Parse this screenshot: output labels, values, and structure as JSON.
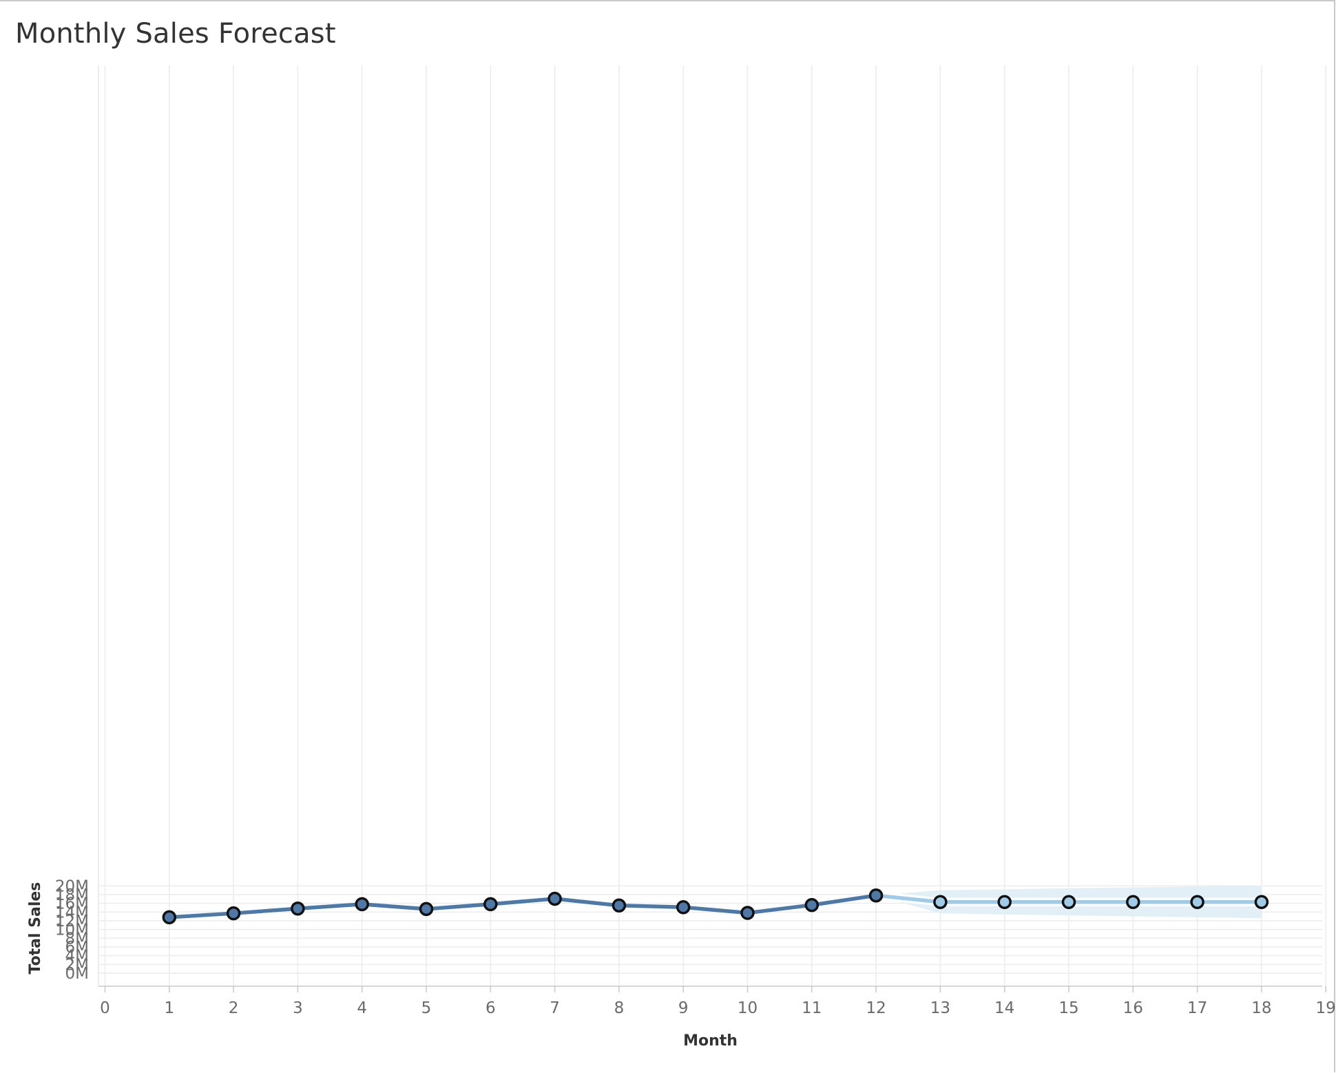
{
  "chart_data": {
    "type": "line",
    "title": "Monthly Sales Forecast",
    "xlabel": "Month",
    "ylabel": "Total Sales",
    "xlim": [
      0,
      19
    ],
    "ylim": [
      0,
      20000000
    ],
    "x_ticks": [
      "0",
      "1",
      "2",
      "3",
      "4",
      "5",
      "6",
      "7",
      "8",
      "9",
      "10",
      "11",
      "12",
      "13",
      "14",
      "15",
      "16",
      "17",
      "18",
      "19"
    ],
    "y_ticks": [
      "0M",
      "2M",
      "4M",
      "6M",
      "8M",
      "10M",
      "12M",
      "14M",
      "16M",
      "18M",
      "20M"
    ],
    "grid": true,
    "series": [
      {
        "kind": "actual",
        "color": "#4e79a7",
        "x": [
          1,
          2,
          3,
          4,
          5,
          6,
          7,
          8,
          9,
          10,
          11,
          12
        ],
        "values": [
          12800000,
          13700000,
          14800000,
          15800000,
          14700000,
          15800000,
          17050000,
          15500000,
          15100000,
          13800000,
          15600000,
          17800000
        ]
      },
      {
        "kind": "forecast",
        "color": "#a0cbe8",
        "x": [
          12,
          13,
          14,
          15,
          16,
          17,
          18
        ],
        "values": [
          17800000,
          16300000,
          16300000,
          16300000,
          16300000,
          16300000,
          16300000
        ]
      }
    ],
    "prediction_interval": {
      "color": "#e3eff7",
      "x": [
        12,
        13,
        14,
        15,
        16,
        17,
        18
      ],
      "upper": [
        17800000,
        19000000,
        19200000,
        19450000,
        19650000,
        19850000,
        20050000
      ],
      "lower": [
        17800000,
        13700000,
        13450000,
        13220000,
        13000000,
        12800000,
        12600000
      ]
    }
  }
}
